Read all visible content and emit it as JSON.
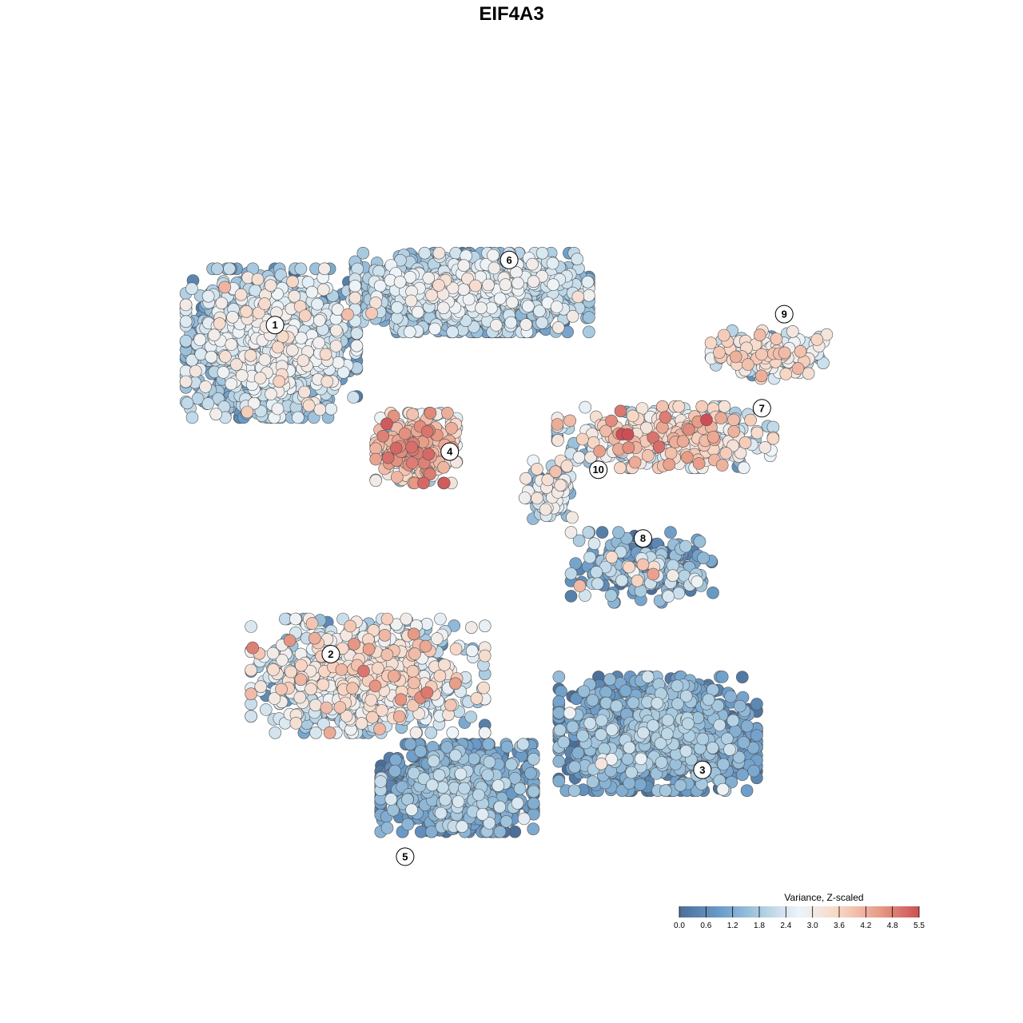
{
  "chart_data": {
    "type": "scatter",
    "title": "EIF4A3",
    "xlabel": "",
    "ylabel": "",
    "grid": false,
    "legend_placement": "bottom-right",
    "colorbar": {
      "title": "Variance, Z-scaled",
      "ticks": [
        "0.0",
        "0.6",
        "1.2",
        "1.8",
        "2.4",
        "3.0",
        "3.6",
        "4.2",
        "4.8",
        "5.5"
      ],
      "range": [
        0.0,
        5.5
      ],
      "colors": [
        "#4b6f98",
        "#6a9bc8",
        "#a9cbe0",
        "#eef4f8",
        "#f8d6c4",
        "#e79c87",
        "#cd4f55"
      ]
    },
    "axis_range_x": [
      0,
      100
    ],
    "axis_range_y": [
      0,
      100
    ],
    "clusters": [
      {
        "id": "1",
        "x": 15.0,
        "y": 73.0,
        "sx": 9.5,
        "sy": 8.5,
        "n": 1500,
        "mean": 1.8,
        "sd": 0.7
      },
      {
        "id": "6",
        "x": 42.0,
        "y": 80.0,
        "sx": 13.0,
        "sy": 4.5,
        "n": 1400,
        "mean": 1.7,
        "sd": 0.6
      },
      {
        "id": "4",
        "x": 34.5,
        "y": 58.5,
        "sx": 4.5,
        "sy": 4.0,
        "n": 360,
        "mean": 3.4,
        "sd": 0.9
      },
      {
        "id": "7",
        "x": 68.0,
        "y": 60.0,
        "sx": 12.0,
        "sy": 3.5,
        "n": 420,
        "mean": 2.8,
        "sd": 1.0
      },
      {
        "id": "9",
        "x": 82.0,
        "y": 71.5,
        "sx": 6.5,
        "sy": 2.8,
        "n": 180,
        "mean": 2.6,
        "sd": 0.9
      },
      {
        "id": "10",
        "x": 52.5,
        "y": 52.5,
        "sx": 2.8,
        "sy": 3.5,
        "n": 100,
        "mean": 2.1,
        "sd": 0.8
      },
      {
        "id": "8",
        "x": 65.0,
        "y": 42.0,
        "sx": 8.0,
        "sy": 4.0,
        "n": 260,
        "mean": 1.1,
        "sd": 0.9
      },
      {
        "id": "2",
        "x": 28.0,
        "y": 27.0,
        "sx": 13.0,
        "sy": 6.5,
        "n": 900,
        "mean": 2.4,
        "sd": 0.8
      },
      {
        "id": "3",
        "x": 67.0,
        "y": 19.0,
        "sx": 11.0,
        "sy": 6.5,
        "n": 1300,
        "mean": 0.9,
        "sd": 0.6
      },
      {
        "id": "5",
        "x": 40.0,
        "y": 11.5,
        "sx": 8.5,
        "sy": 5.0,
        "n": 1100,
        "mean": 0.8,
        "sd": 0.6
      }
    ],
    "cluster_labels": [
      {
        "text": "1",
        "x": 15.5,
        "y": 75.5
      },
      {
        "text": "6",
        "x": 47.0,
        "y": 84.5
      },
      {
        "text": "9",
        "x": 84.0,
        "y": 77.0
      },
      {
        "text": "7",
        "x": 81.0,
        "y": 64.0
      },
      {
        "text": "4",
        "x": 39.0,
        "y": 58.0
      },
      {
        "text": "10",
        "x": 59.0,
        "y": 55.5
      },
      {
        "text": "8",
        "x": 65.0,
        "y": 46.0
      },
      {
        "text": "2",
        "x": 23.0,
        "y": 30.0
      },
      {
        "text": "3",
        "x": 73.0,
        "y": 14.0
      },
      {
        "text": "5",
        "x": 33.0,
        "y": 2.0
      }
    ]
  }
}
